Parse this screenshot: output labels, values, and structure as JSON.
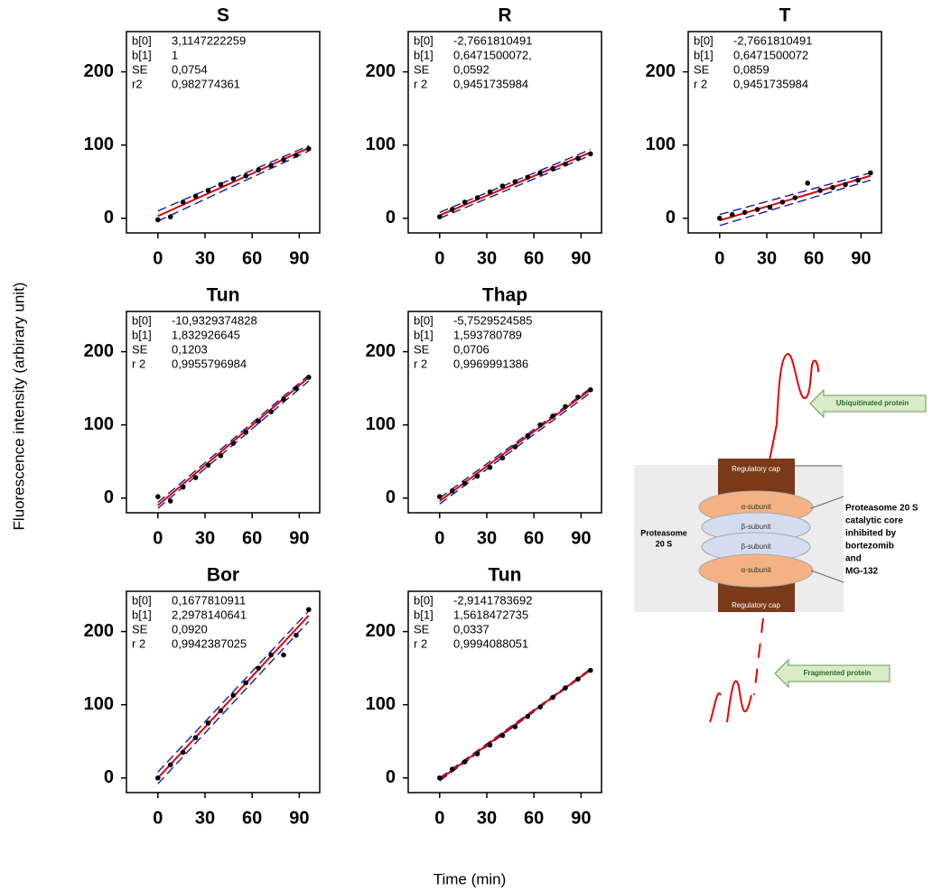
{
  "xlabel": "Time (min)",
  "ylabel": "Fluorescence intensity (arbirary unit)",
  "chart_data": [
    {
      "type": "scatter",
      "title": "S",
      "stats": [
        [
          "b[0]",
          "3,1147222259"
        ],
        [
          "b[1]",
          "1"
        ],
        [
          "SE",
          "0,0754"
        ],
        [
          "r2",
          "0,982774361"
        ]
      ],
      "xlim": [
        -20,
        103
      ],
      "ylim": [
        -20,
        255
      ],
      "xticks": [
        0,
        30,
        60,
        90
      ],
      "yticks": [
        0,
        100,
        200
      ],
      "points": {
        "x": [
          0,
          8,
          16,
          24,
          32,
          40,
          48,
          56,
          64,
          72,
          80,
          88,
          96
        ],
        "y": [
          -2,
          2,
          22,
          30,
          38,
          46,
          54,
          58,
          66,
          72,
          80,
          86,
          95
        ],
        "color": "#000000"
      },
      "fit": {
        "x": [
          0,
          96
        ],
        "y": [
          3,
          96
        ],
        "color": "#e00000"
      },
      "upper": {
        "x": [
          0,
          96
        ],
        "y": [
          10,
          99
        ],
        "color": "#1a1aa0"
      },
      "lower": {
        "x": [
          0,
          96
        ],
        "y": [
          -4,
          92
        ],
        "color": "#1a1aa0"
      }
    },
    {
      "type": "scatter",
      "title": "R",
      "stats": [
        [
          "b[0]",
          "-2,7661810491"
        ],
        [
          "b[1]",
          "0,6471500072,"
        ],
        [
          "SE",
          "0,0592"
        ],
        [
          "r 2",
          "0,9451735984"
        ]
      ],
      "xlim": [
        -20,
        103
      ],
      "ylim": [
        -20,
        255
      ],
      "xticks": [
        0,
        30,
        60,
        90
      ],
      "yticks": [
        0,
        100,
        200
      ],
      "points": {
        "x": [
          0,
          8,
          16,
          24,
          32,
          40,
          48,
          56,
          64,
          72,
          80,
          88,
          96
        ],
        "y": [
          2,
          12,
          22,
          28,
          36,
          44,
          50,
          56,
          62,
          68,
          74,
          82,
          88
        ],
        "color": "#000000"
      },
      "fit": {
        "x": [
          0,
          96
        ],
        "y": [
          4,
          90
        ],
        "color": "#e00000"
      },
      "upper": {
        "x": [
          0,
          96
        ],
        "y": [
          8,
          94
        ],
        "color": "#1a1aa0"
      },
      "lower": {
        "x": [
          0,
          96
        ],
        "y": [
          0,
          86
        ],
        "color": "#1a1aa0"
      }
    },
    {
      "type": "scatter",
      "title": "T",
      "stats": [
        [
          "b[0]",
          "-2,7661810491"
        ],
        [
          "b[1]",
          "0,6471500072"
        ],
        [
          "SE",
          "0,0859"
        ],
        [
          "r 2",
          "0,9451735984"
        ]
      ],
      "xlim": [
        -20,
        103
      ],
      "ylim": [
        -20,
        255
      ],
      "xticks": [
        0,
        30,
        60,
        90
      ],
      "yticks": [
        0,
        100,
        200
      ],
      "points": {
        "x": [
          0,
          8,
          16,
          24,
          32,
          40,
          48,
          56,
          64,
          72,
          80,
          88,
          96
        ],
        "y": [
          0,
          5,
          8,
          12,
          15,
          22,
          28,
          48,
          38,
          42,
          46,
          52,
          62
        ],
        "color": "#000000"
      },
      "fit": {
        "x": [
          0,
          96
        ],
        "y": [
          -3,
          58
        ],
        "color": "#e00000"
      },
      "upper": {
        "x": [
          0,
          96
        ],
        "y": [
          5,
          62
        ],
        "color": "#1a1aa0"
      },
      "lower": {
        "x": [
          0,
          96
        ],
        "y": [
          -10,
          52
        ],
        "color": "#1a1aa0"
      }
    },
    {
      "type": "scatter",
      "title": "Tun",
      "stats": [
        [
          "b[0]",
          "-10,9329374828"
        ],
        [
          "b[1]",
          "1,832926645"
        ],
        [
          "SE",
          "0,1203"
        ],
        [
          "r 2",
          "0,9955796984"
        ]
      ],
      "xlim": [
        -20,
        103
      ],
      "ylim": [
        -20,
        255
      ],
      "xticks": [
        0,
        30,
        60,
        90
      ],
      "yticks": [
        0,
        100,
        200
      ],
      "points": {
        "x": [
          0,
          8,
          16,
          24,
          32,
          40,
          48,
          56,
          64,
          72,
          80,
          88,
          96
        ],
        "y": [
          2,
          -4,
          15,
          28,
          45,
          58,
          75,
          90,
          105,
          118,
          135,
          150,
          165
        ],
        "color": "#000000"
      },
      "fit": {
        "x": [
          0,
          96
        ],
        "y": [
          -10,
          165
        ],
        "color": "#e00000"
      },
      "upper": {
        "x": [
          0,
          96
        ],
        "y": [
          -6,
          168
        ],
        "color": "#1a1aa0"
      },
      "lower": {
        "x": [
          0,
          96
        ],
        "y": [
          -14,
          160
        ],
        "color": "#1a1aa0"
      }
    },
    {
      "type": "scatter",
      "title": "Thap",
      "stats": [
        [
          "b[0]",
          "-5,7529524585"
        ],
        [
          "b[1]",
          "1,593780789"
        ],
        [
          "SE",
          "0,0706"
        ],
        [
          "r 2",
          "0,9969991386"
        ]
      ],
      "xlim": [
        -20,
        103
      ],
      "ylim": [
        -20,
        255
      ],
      "xticks": [
        0,
        30,
        60,
        90
      ],
      "yticks": [
        0,
        100,
        200
      ],
      "points": {
        "x": [
          0,
          8,
          16,
          24,
          32,
          40,
          48,
          56,
          64,
          72,
          80,
          88,
          96
        ],
        "y": [
          2,
          10,
          20,
          30,
          42,
          55,
          70,
          85,
          100,
          112,
          125,
          138,
          148
        ],
        "color": "#000000"
      },
      "fit": {
        "x": [
          0,
          96
        ],
        "y": [
          -4,
          148
        ],
        "color": "#e00000"
      },
      "upper": {
        "x": [
          0,
          96
        ],
        "y": [
          0,
          150
        ],
        "color": "#1a1aa0"
      },
      "lower": {
        "x": [
          0,
          96
        ],
        "y": [
          -8,
          144
        ],
        "color": "#1a1aa0"
      }
    },
    {
      "type": "scatter",
      "title": "Bor",
      "stats": [
        [
          "b[0]",
          "0,1677810911"
        ],
        [
          "b[1]",
          "2,2978140641"
        ],
        [
          "SE",
          "0,0920"
        ],
        [
          "r 2",
          "0,9942387025"
        ]
      ],
      "xlim": [
        -20,
        103
      ],
      "ylim": [
        -20,
        255
      ],
      "xticks": [
        0,
        30,
        60,
        90
      ],
      "yticks": [
        0,
        100,
        200
      ],
      "points": {
        "x": [
          0,
          8,
          16,
          24,
          32,
          40,
          48,
          56,
          64,
          72,
          80,
          88,
          96
        ],
        "y": [
          0,
          18,
          35,
          55,
          75,
          92,
          113,
          130,
          150,
          168,
          168,
          195,
          230
        ],
        "color": "#000000"
      },
      "fit": {
        "x": [
          0,
          96
        ],
        "y": [
          0,
          222
        ],
        "color": "#e00000"
      },
      "upper": {
        "x": [
          0,
          96
        ],
        "y": [
          8,
          228
        ],
        "color": "#1a1aa0"
      },
      "lower": {
        "x": [
          0,
          96
        ],
        "y": [
          -8,
          214
        ],
        "color": "#1a1aa0"
      }
    },
    {
      "type": "scatter",
      "title": "Tun",
      "stats": [
        [
          "b[0]",
          "-2,9141783692"
        ],
        [
          "b[1]",
          "1,5618472735"
        ],
        [
          "SE",
          "0,0337"
        ],
        [
          "r 2",
          "0,9994088051"
        ]
      ],
      "xlim": [
        -20,
        103
      ],
      "ylim": [
        -20,
        255
      ],
      "xticks": [
        0,
        30,
        60,
        90
      ],
      "yticks": [
        0,
        100,
        200
      ],
      "points": {
        "x": [
          0,
          8,
          16,
          24,
          32,
          40,
          48,
          56,
          64,
          72,
          80,
          88,
          96
        ],
        "y": [
          0,
          12,
          22,
          33,
          45,
          58,
          70,
          84,
          97,
          110,
          123,
          135,
          147
        ],
        "color": "#000000"
      },
      "fit": {
        "x": [
          0,
          96
        ],
        "y": [
          -2,
          148
        ],
        "color": "#e00000"
      },
      "upper": {
        "x": [
          0,
          96
        ],
        "y": [
          0,
          149
        ],
        "color": "#1a1aa0"
      },
      "lower": {
        "x": [
          0,
          96
        ],
        "y": [
          -4,
          147
        ],
        "color": "#1a1aa0"
      }
    }
  ],
  "diagram": {
    "ubiquitinated": "Ubiquitinated protein",
    "fragmented": "Fragmented protein",
    "cap_top": "Regulatory cap",
    "cap_bottom": "Regulatory cap",
    "rings": [
      "α-subunit",
      "β-subunit",
      "β-subunit",
      "α-subunit"
    ],
    "left_label": [
      "Proteasome",
      "20 S"
    ],
    "note": [
      "Proteasome  20 S",
      "catalytic core",
      "inhibited by",
      "bortezomib",
      "and",
      "MG-132"
    ]
  }
}
